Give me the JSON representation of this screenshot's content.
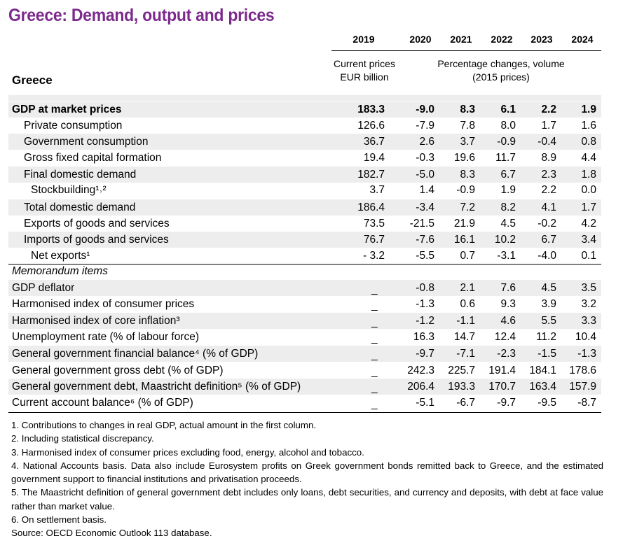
{
  "title": "Greece: Demand, output and prices",
  "header": {
    "years": [
      "2019",
      "2020",
      "2021",
      "2022",
      "2023",
      "2024"
    ],
    "current_prices_line1": "Current prices",
    "current_prices_line2": "EUR billion",
    "pct_line1": "Percentage changes, volume",
    "pct_line2": "(2015 prices)",
    "country": "Greece"
  },
  "rows": [
    {
      "label": "GDP at market prices",
      "bold": true,
      "indent": 0,
      "values": [
        "183.3",
        "-9.0",
        "8.3",
        "6.1",
        "2.2",
        "1.9"
      ]
    },
    {
      "label": "Private consumption",
      "indent": 1,
      "values": [
        "126.6",
        "-7.9",
        "7.8",
        "8.0",
        "1.7",
        "1.6"
      ]
    },
    {
      "label": "Government consumption",
      "indent": 1,
      "values": [
        "36.7",
        "2.6",
        "3.7",
        "-0.9",
        "-0.4",
        "0.8"
      ]
    },
    {
      "label": "Gross fixed capital formation",
      "indent": 1,
      "values": [
        "19.4",
        "-0.3",
        "19.6",
        "11.7",
        "8.9",
        "4.4"
      ]
    },
    {
      "label": "Final domestic demand",
      "indent": 1,
      "values": [
        "182.7",
        "-5.0",
        "8.3",
        "6.7",
        "2.3",
        "1.8"
      ]
    },
    {
      "label": "Stockbuilding¹˒²",
      "indent": 2,
      "values": [
        "3.7",
        "1.4",
        "-0.9",
        "1.9",
        "2.2",
        "0.0"
      ]
    },
    {
      "label": "Total domestic demand",
      "indent": 1,
      "values": [
        "186.4",
        "-3.4",
        "7.2",
        "8.2",
        "4.1",
        "1.7"
      ]
    },
    {
      "label": "Exports of goods and services",
      "indent": 1,
      "values": [
        "73.5",
        "-21.5",
        "21.9",
        "4.5",
        "-0.2",
        "4.2"
      ]
    },
    {
      "label": "Imports of goods and services",
      "indent": 1,
      "values": [
        "76.7",
        "-7.6",
        "16.1",
        "10.2",
        "6.7",
        "3.4"
      ]
    },
    {
      "label": "Net exports¹",
      "indent": 2,
      "values": [
        "- 3.2",
        "-5.5",
        "0.7",
        "-3.1",
        "-4.0",
        "0.1"
      ]
    }
  ],
  "memo_title": "Memorandum items",
  "memo_rows": [
    {
      "label": "GDP deflator",
      "values": [
        "_",
        "-0.8",
        "2.1",
        "7.6",
        "4.5",
        "3.5"
      ]
    },
    {
      "label": "Harmonised index of consumer prices",
      "values": [
        "_",
        "-1.3",
        "0.6",
        "9.3",
        "3.9",
        "3.2"
      ]
    },
    {
      "label": "Harmonised index of core inflation³",
      "values": [
        "_",
        "-1.2",
        "-1.1",
        "4.6",
        "5.5",
        "3.3"
      ]
    },
    {
      "label": "Unemployment rate (% of labour force)",
      "values": [
        "_",
        "16.3",
        "14.7",
        "12.4",
        "11.2",
        "10.4"
      ]
    },
    {
      "label": "General government financial balance⁴ (% of GDP)",
      "values": [
        "_",
        "-9.7",
        "-7.1",
        "-2.3",
        "-1.5",
        "-1.3"
      ]
    },
    {
      "label": "General government gross debt (% of GDP)",
      "values": [
        "_",
        "242.3",
        "225.7",
        "191.4",
        "184.1",
        "178.6"
      ]
    },
    {
      "label": "General government debt, Maastricht definition⁵ (% of GDP)",
      "values": [
        "_",
        "206.4",
        "193.3",
        "170.7",
        "163.4",
        "157.9"
      ]
    },
    {
      "label": "Current account balance⁶ (% of GDP)",
      "values": [
        "_",
        "-5.1",
        "-6.7",
        "-9.7",
        "-9.5",
        "-8.7"
      ]
    }
  ],
  "notes": [
    "1. Contributions to changes in real GDP, actual amount in the first column.",
    "2. Including statistical discrepancy.",
    "3. Harmonised index of consumer prices excluding food, energy, alcohol and tobacco.",
    "4. National Accounts basis. Data also include Eurosystem profits on Greek government bonds remitted back to Greece, and the estimated government support to financial institutions and privatisation proceeds.",
    "5. The Maastricht definition of general government debt includes only loans, debt securities, and currency and deposits, with debt at face value rather than market value.",
    "6. On settlement basis.",
    "Source: OECD Economic Outlook 113 database."
  ],
  "colors": {
    "title": "#7b2a8c",
    "shade": "#ededed"
  }
}
